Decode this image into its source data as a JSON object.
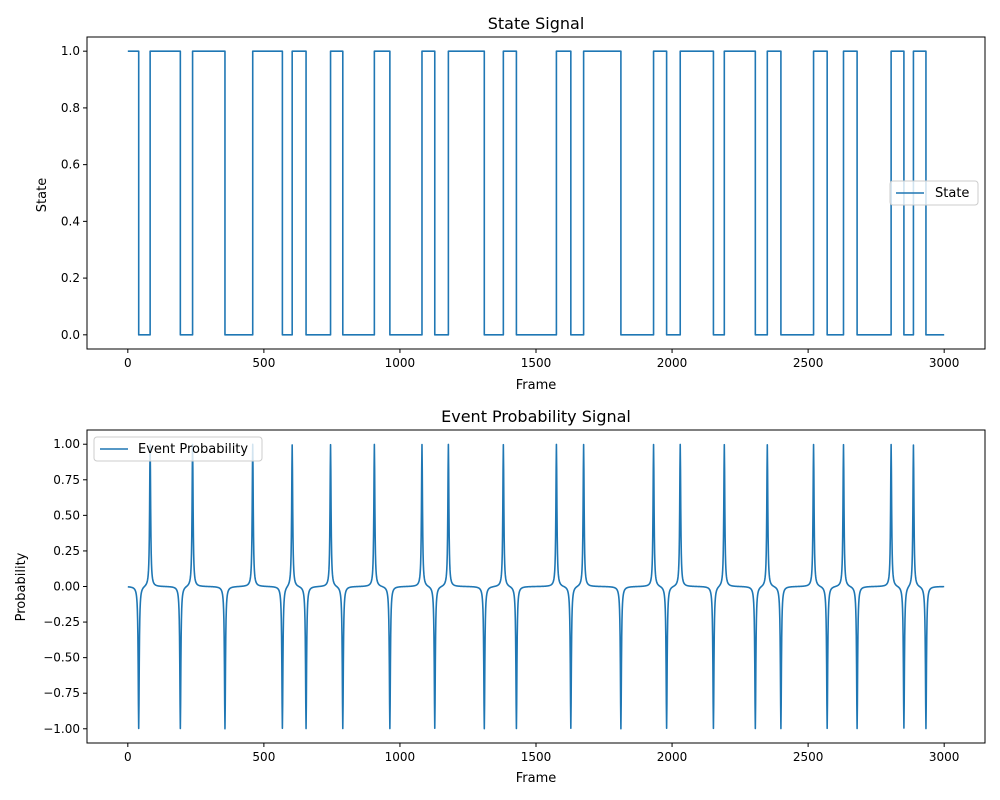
{
  "colors": {
    "series": "#1f77b4",
    "axes": "#000000",
    "legend_border": "#cccccc"
  },
  "chart_data": [
    {
      "type": "line",
      "title": "State Signal",
      "xlabel": "Frame",
      "ylabel": "State",
      "xlim": [
        -150,
        3150
      ],
      "ylim": [
        -0.05,
        1.05
      ],
      "xticks": [
        0,
        500,
        1000,
        1500,
        2000,
        2500,
        3000
      ],
      "xtick_labels": [
        "0",
        "500",
        "1000",
        "1500",
        "2000",
        "2500",
        "3000"
      ],
      "yticks": [
        0.0,
        0.2,
        0.4,
        0.6,
        0.8,
        1.0
      ],
      "ytick_labels": [
        "0.0",
        "0.2",
        "0.4",
        "0.6",
        "0.8",
        "1.0"
      ],
      "grid": false,
      "legend": {
        "placement": "center-right"
      },
      "series": [
        {
          "name": "State",
          "step": true,
          "x": [
            0,
            40,
            82,
            193,
            238,
            357,
            459,
            568,
            604,
            655,
            745,
            790,
            906,
            963,
            1081,
            1128,
            1178,
            1310,
            1380,
            1428,
            1575,
            1628,
            1675,
            1812,
            1932,
            1980,
            2030,
            2152,
            2192,
            2306,
            2350,
            2400,
            2520,
            2570,
            2630,
            2680,
            2805,
            2852,
            2887,
            2933,
            3000
          ],
          "values": [
            1,
            0,
            1,
            0,
            1,
            0,
            1,
            0,
            1,
            0,
            1,
            0,
            1,
            0,
            1,
            0,
            1,
            0,
            1,
            0,
            1,
            0,
            1,
            0,
            1,
            0,
            1,
            0,
            1,
            0,
            1,
            0,
            1,
            0,
            1,
            0,
            1,
            0,
            1,
            0,
            0
          ]
        }
      ]
    },
    {
      "type": "line",
      "title": "Event Probability Signal",
      "xlabel": "Frame",
      "ylabel": "Probability",
      "xlim": [
        -150,
        3150
      ],
      "ylim": [
        -1.1,
        1.1
      ],
      "xticks": [
        0,
        500,
        1000,
        1500,
        2000,
        2500,
        3000
      ],
      "xtick_labels": [
        "0",
        "500",
        "1000",
        "1500",
        "2000",
        "2500",
        "3000"
      ],
      "yticks": [
        -1.0,
        -0.75,
        -0.5,
        -0.25,
        0.0,
        0.25,
        0.5,
        0.75,
        1.0
      ],
      "ytick_labels": [
        "−1.00",
        "−0.75",
        "−0.50",
        "−0.25",
        "0.00",
        "0.25",
        "0.50",
        "0.75",
        "1.00"
      ],
      "grid": false,
      "legend": {
        "placement": "upper-left"
      },
      "series": [
        {
          "name": "Event Probability",
          "baseline": 0,
          "peak_shape": "sharp spike decaying to baseline over about 15 frames",
          "spikes": [
            {
              "x": 40,
              "value": -1
            },
            {
              "x": 82,
              "value": 1
            },
            {
              "x": 193,
              "value": -1
            },
            {
              "x": 238,
              "value": 1
            },
            {
              "x": 357,
              "value": -1
            },
            {
              "x": 459,
              "value": 1
            },
            {
              "x": 568,
              "value": -1
            },
            {
              "x": 604,
              "value": 1
            },
            {
              "x": 655,
              "value": -1
            },
            {
              "x": 745,
              "value": 1
            },
            {
              "x": 790,
              "value": -1
            },
            {
              "x": 906,
              "value": 1
            },
            {
              "x": 963,
              "value": -1
            },
            {
              "x": 1081,
              "value": 1
            },
            {
              "x": 1128,
              "value": -1
            },
            {
              "x": 1178,
              "value": 1
            },
            {
              "x": 1310,
              "value": -1
            },
            {
              "x": 1380,
              "value": 1
            },
            {
              "x": 1428,
              "value": -1
            },
            {
              "x": 1575,
              "value": 1
            },
            {
              "x": 1628,
              "value": -1
            },
            {
              "x": 1675,
              "value": 1
            },
            {
              "x": 1812,
              "value": -1
            },
            {
              "x": 1932,
              "value": 1
            },
            {
              "x": 1980,
              "value": -1
            },
            {
              "x": 2030,
              "value": 1
            },
            {
              "x": 2152,
              "value": -1
            },
            {
              "x": 2192,
              "value": 1
            },
            {
              "x": 2306,
              "value": -1
            },
            {
              "x": 2350,
              "value": 1
            },
            {
              "x": 2400,
              "value": -1
            },
            {
              "x": 2520,
              "value": 1
            },
            {
              "x": 2570,
              "value": -1
            },
            {
              "x": 2630,
              "value": 1
            },
            {
              "x": 2680,
              "value": -1
            },
            {
              "x": 2805,
              "value": 1
            },
            {
              "x": 2852,
              "value": -1
            },
            {
              "x": 2887,
              "value": 1
            },
            {
              "x": 2933,
              "value": -1
            }
          ],
          "x_range": [
            0,
            3000
          ]
        }
      ]
    }
  ]
}
